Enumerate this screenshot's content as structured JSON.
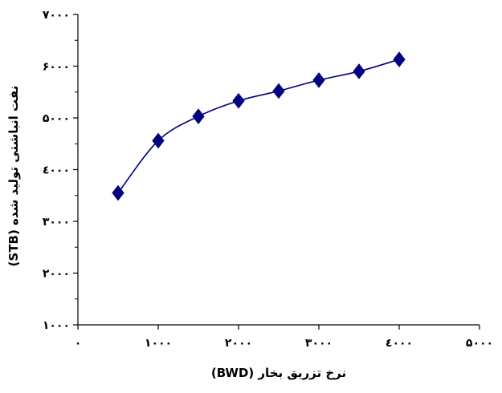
{
  "chart_data": {
    "type": "line",
    "title": "",
    "xlabel": "نرخ تزریق بخار (BWD)",
    "ylabel": "نفت انباشتی تولید شده (STB)",
    "xlim": [
      0,
      5000
    ],
    "ylim": [
      1000,
      7000
    ],
    "x_ticks": [
      {
        "value": 0,
        "label": "۰"
      },
      {
        "value": 1000,
        "label": "۱۰۰۰"
      },
      {
        "value": 2000,
        "label": "۲۰۰۰"
      },
      {
        "value": 3000,
        "label": "۳۰۰۰"
      },
      {
        "value": 4000,
        "label": "٤۰۰۰"
      },
      {
        "value": 5000,
        "label": "۵۰۰۰"
      }
    ],
    "y_ticks": [
      {
        "value": 1000,
        "label": "۱۰۰۰"
      },
      {
        "value": 2000,
        "label": "۲۰۰۰"
      },
      {
        "value": 3000,
        "label": "۳۰۰۰"
      },
      {
        "value": 4000,
        "label": "٤۰۰۰"
      },
      {
        "value": 5000,
        "label": "۵۰۰۰"
      },
      {
        "value": 6000,
        "label": "۶۰۰۰"
      },
      {
        "value": 7000,
        "label": "۷۰۰۰"
      }
    ],
    "minor_y_step": 500,
    "grid": false,
    "marker": "diamond",
    "smooth": true,
    "series_color": "#000080",
    "series": [
      {
        "x": [
          500,
          1000,
          1500,
          2000,
          2500,
          3000,
          3500,
          4000
        ],
        "y": [
          3550,
          4560,
          5030,
          5330,
          5520,
          5730,
          5900,
          6130
        ]
      }
    ]
  }
}
